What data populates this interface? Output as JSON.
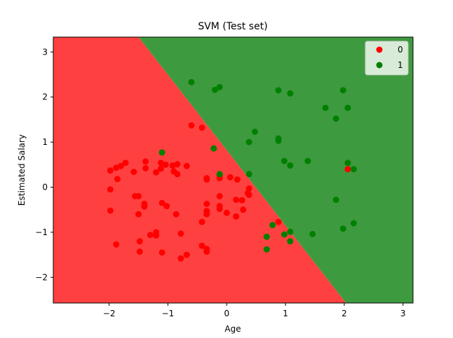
{
  "chart_data": {
    "type": "scatter",
    "title": "SVM (Test set)",
    "xlabel": "Age",
    "ylabel": "Estimated Salary",
    "xlim": [
      -2.95,
      3.17
    ],
    "ylim": [
      -2.57,
      3.33
    ],
    "xticks": [
      -2,
      -1,
      0,
      1,
      2,
      3
    ],
    "yticks": [
      -2,
      -1,
      0,
      1,
      2,
      3
    ],
    "xtick_labels": [
      "−2",
      "−1",
      "0",
      "1",
      "2",
      "3"
    ],
    "ytick_labels": [
      "−2",
      "−1",
      "0",
      "1",
      "2",
      "3"
    ],
    "grid": false,
    "legend_position": "top-right",
    "decision_boundary": {
      "description_points": [
        [
          -1.5,
          3.33
        ],
        [
          2.03,
          -2.57
        ]
      ],
      "class0_color": "#ff4040",
      "class1_color": "#3e9a3e"
    },
    "series": [
      {
        "name": "0",
        "color": "#ff0000",
        "points": [
          [
            -1.98,
            0.37
          ],
          [
            -1.88,
            0.43
          ],
          [
            -1.8,
            0.47
          ],
          [
            -1.72,
            0.54
          ],
          [
            -1.86,
            0.18
          ],
          [
            -1.98,
            -0.05
          ],
          [
            -1.98,
            -0.52
          ],
          [
            -1.88,
            -1.27
          ],
          [
            -1.58,
            0.34
          ],
          [
            -1.38,
            0.57
          ],
          [
            -1.38,
            0.42
          ],
          [
            -1.2,
            0.33
          ],
          [
            -1.12,
            0.41
          ],
          [
            -1.12,
            0.54
          ],
          [
            -1.04,
            0.5
          ],
          [
            -0.92,
            0.48
          ],
          [
            -0.9,
            0.35
          ],
          [
            -0.84,
            0.29
          ],
          [
            -0.84,
            0.51
          ],
          [
            -0.68,
            0.47
          ],
          [
            -0.6,
            1.37
          ],
          [
            -0.42,
            1.32
          ],
          [
            -1.5,
            -0.2
          ],
          [
            -1.56,
            -0.2
          ],
          [
            -1.4,
            -0.37
          ],
          [
            -1.4,
            -0.43
          ],
          [
            -1.5,
            -0.6
          ],
          [
            -1.1,
            -0.35
          ],
          [
            -1.02,
            -0.42
          ],
          [
            -0.86,
            -0.6
          ],
          [
            -1.3,
            -1.06
          ],
          [
            -1.2,
            -1.0
          ],
          [
            -1.2,
            -1.07
          ],
          [
            -1.48,
            -1.2
          ],
          [
            -1.48,
            -1.43
          ],
          [
            -1.1,
            -1.45
          ],
          [
            -0.78,
            -1.03
          ],
          [
            -0.68,
            -1.5
          ],
          [
            -0.78,
            -1.58
          ],
          [
            -0.42,
            -1.3
          ],
          [
            -0.34,
            -1.37
          ],
          [
            -0.34,
            -1.43
          ],
          [
            -0.42,
            -0.77
          ],
          [
            -0.34,
            -0.6
          ],
          [
            -0.34,
            -0.53
          ],
          [
            -0.34,
            -0.37
          ],
          [
            -0.12,
            -0.42
          ],
          [
            -0.12,
            -0.48
          ],
          [
            -0.12,
            -0.2
          ],
          [
            -0.12,
            0.2
          ],
          [
            -0.12,
            0.27
          ],
          [
            -0.34,
            0.17
          ],
          [
            -0.34,
            0.2
          ],
          [
            0.06,
            0.22
          ],
          [
            0.18,
            0.17
          ],
          [
            0.16,
            -0.28
          ],
          [
            0.26,
            -0.29
          ],
          [
            0.16,
            -0.65
          ],
          [
            0.28,
            -0.5
          ],
          [
            0.38,
            -0.03
          ],
          [
            0.36,
            -0.13
          ],
          [
            0.38,
            -0.17
          ],
          [
            0.0,
            -0.57
          ],
          [
            0.88,
            -0.77
          ],
          [
            2.06,
            0.4
          ]
        ]
      },
      {
        "name": "1",
        "color": "#008000",
        "points": [
          [
            -0.6,
            2.33
          ],
          [
            -0.2,
            2.16
          ],
          [
            -0.12,
            2.22
          ],
          [
            0.88,
            2.15
          ],
          [
            1.08,
            2.08
          ],
          [
            1.98,
            2.15
          ],
          [
            1.68,
            1.76
          ],
          [
            1.86,
            1.52
          ],
          [
            2.06,
            1.76
          ],
          [
            0.48,
            1.23
          ],
          [
            0.38,
            1.0
          ],
          [
            0.88,
            1.08
          ],
          [
            0.88,
            1.03
          ],
          [
            -1.1,
            0.77
          ],
          [
            -0.22,
            0.86
          ],
          [
            -0.12,
            0.29
          ],
          [
            0.38,
            0.29
          ],
          [
            0.98,
            0.58
          ],
          [
            1.08,
            0.48
          ],
          [
            1.38,
            0.58
          ],
          [
            2.06,
            0.54
          ],
          [
            2.16,
            0.4
          ],
          [
            1.86,
            -0.28
          ],
          [
            2.16,
            -0.8
          ],
          [
            1.98,
            -0.92
          ],
          [
            1.46,
            -1.04
          ],
          [
            1.08,
            -0.99
          ],
          [
            0.98,
            -1.05
          ],
          [
            1.08,
            -1.2
          ],
          [
            0.78,
            -0.84
          ],
          [
            0.68,
            -1.1
          ],
          [
            0.68,
            -1.38
          ]
        ]
      }
    ]
  }
}
